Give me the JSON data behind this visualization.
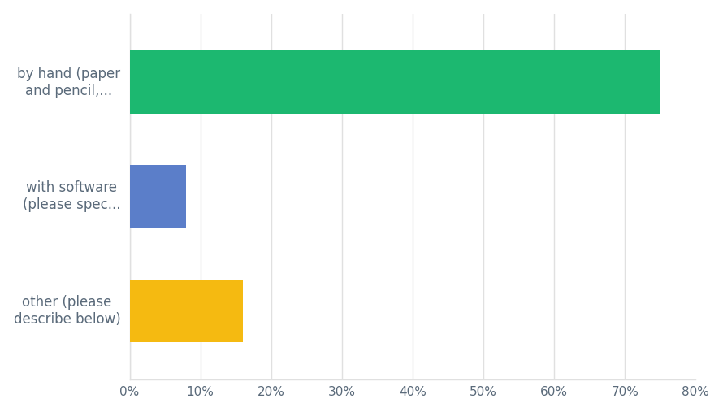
{
  "categories": [
    "other (please\ndescribe below)",
    "with software\n(please spec...",
    "by hand (paper\nand pencil,..."
  ],
  "values": [
    16,
    8,
    75
  ],
  "bar_colors": [
    "#F5BA11",
    "#5B7EC9",
    "#1CB870"
  ],
  "xlim": [
    0,
    80
  ],
  "xtick_values": [
    0,
    10,
    20,
    30,
    40,
    50,
    60,
    70,
    80
  ],
  "background_color": "#ffffff",
  "plot_bg_color": "#ffffff",
  "grid_color": "#e0e0e0",
  "label_color": "#5a6a7a",
  "tick_color": "#5a6a7a",
  "label_fontsize": 12,
  "tick_fontsize": 11,
  "bar_height": 0.55
}
